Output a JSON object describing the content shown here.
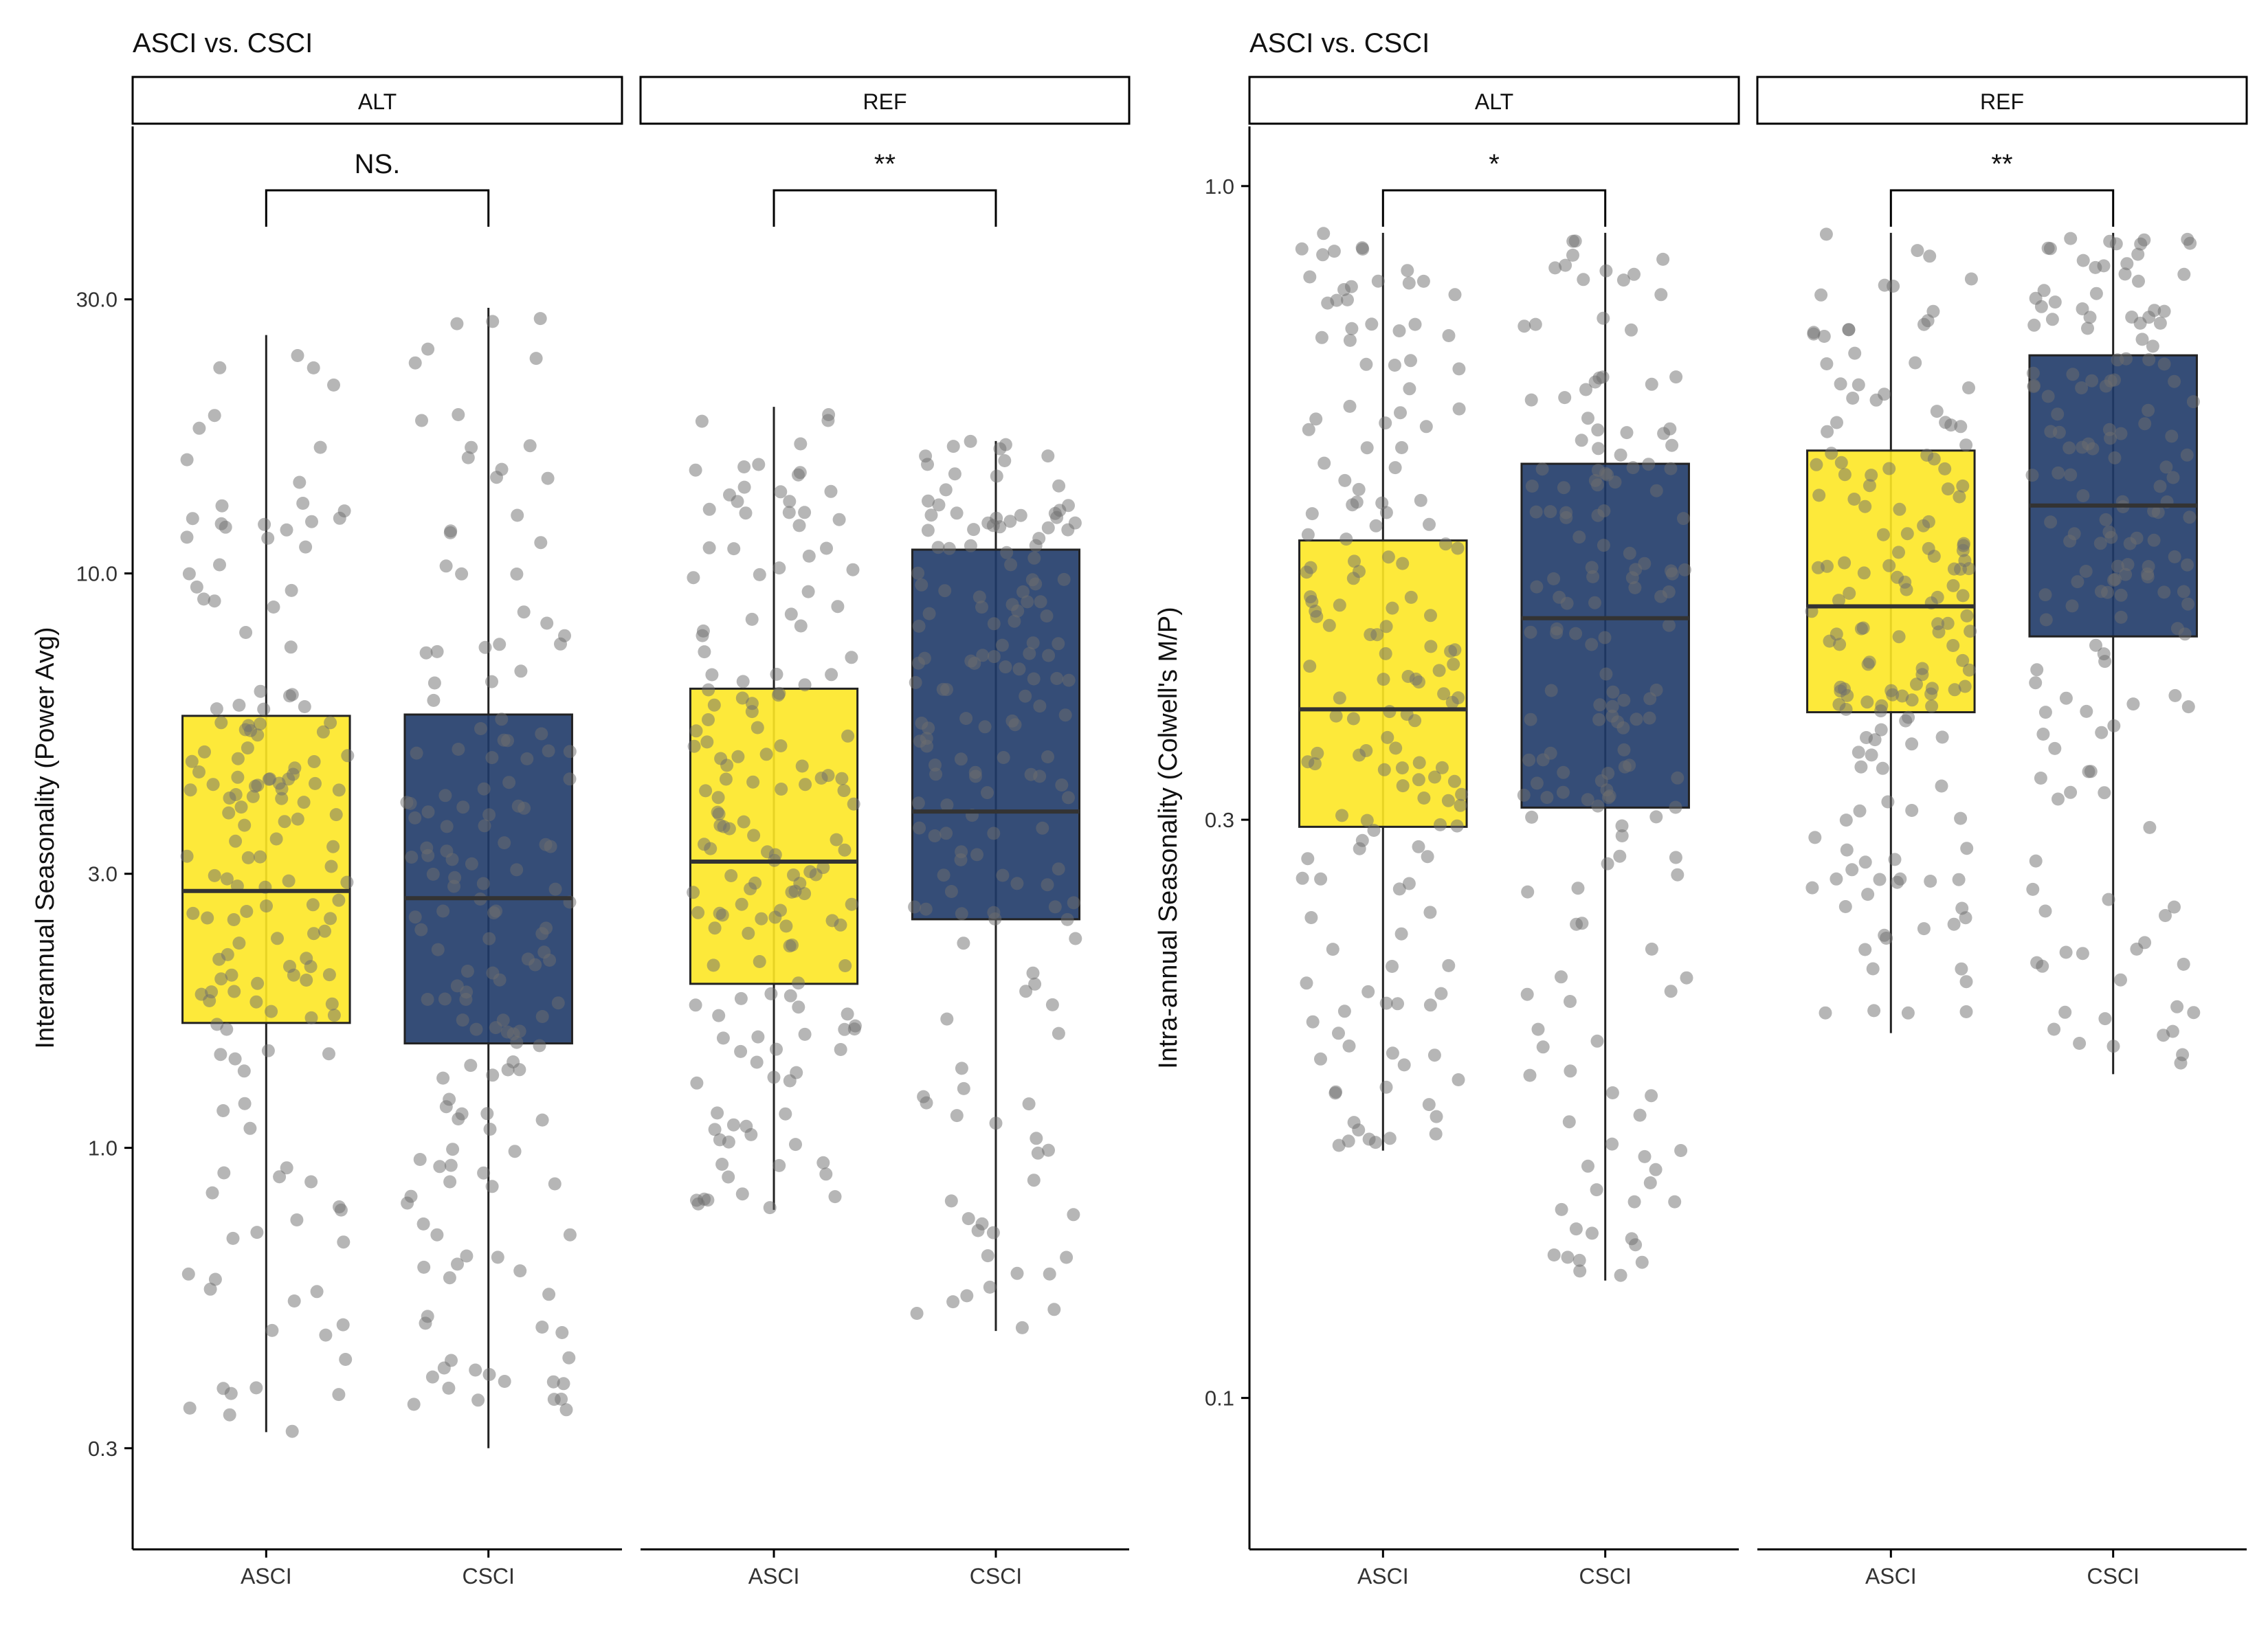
{
  "colors": {
    "asci_fill": "#FDE725",
    "csci_fill": "#1F3A68",
    "box_stroke": "#222222",
    "point": "#6E6E6E",
    "outlier": "#333333",
    "axis": "#000000"
  },
  "chart_data": [
    {
      "type": "boxplot",
      "title": "ASCI vs. CSCI",
      "ylabel": "Interannual Seasonality (Power Avg)",
      "yscale": "log",
      "ylim": [
        0.2,
        60
      ],
      "yticks": [
        {
          "value": 0.3,
          "label": "0.3"
        },
        {
          "value": 1.0,
          "label": "1.0"
        },
        {
          "value": 3.0,
          "label": "3.0"
        },
        {
          "value": 10.0,
          "label": "10.0"
        },
        {
          "value": 30.0,
          "label": "30.0"
        }
      ],
      "categories": [
        "ASCI",
        "CSCI"
      ],
      "facets": [
        {
          "label": "ALT",
          "significance": "NS.",
          "boxes": [
            {
              "category": "ASCI",
              "min": 0.32,
              "q1": 1.65,
              "median": 2.8,
              "q3": 5.65,
              "max": 26
            },
            {
              "category": "CSCI",
              "min": 0.3,
              "q1": 1.52,
              "median": 2.72,
              "q3": 5.68,
              "max": 29
            }
          ]
        },
        {
          "label": "REF",
          "significance": "**",
          "boxes": [
            {
              "category": "ASCI",
              "min": 0.78,
              "q1": 1.93,
              "median": 3.15,
              "q3": 6.3,
              "max": 19.5
            },
            {
              "category": "CSCI",
              "min": 0.48,
              "q1": 2.5,
              "median": 3.85,
              "q3": 11.0,
              "max": 17
            }
          ]
        }
      ]
    },
    {
      "type": "boxplot",
      "title": "ASCI vs. CSCI",
      "ylabel": "Intra-annual Seasonality (Colwell's M/P)",
      "yscale": "log",
      "ylim": [
        0.075,
        1.12
      ],
      "yticks": [
        {
          "value": 0.1,
          "label": "0.1"
        },
        {
          "value": 0.3,
          "label": "0.3"
        },
        {
          "value": 1.0,
          "label": "1.0"
        }
      ],
      "categories": [
        "ASCI",
        "CSCI"
      ],
      "facets": [
        {
          "label": "ALT",
          "significance": "*",
          "boxes": [
            {
              "category": "ASCI",
              "min": 0.16,
              "q1": 0.296,
              "median": 0.37,
              "q3": 0.51,
              "max": 0.915
            },
            {
              "category": "CSCI",
              "min": 0.125,
              "q1": 0.307,
              "median": 0.44,
              "q3": 0.59,
              "max": 0.915
            }
          ]
        },
        {
          "label": "REF",
          "significance": "**",
          "boxes": [
            {
              "category": "ASCI",
              "min": 0.2,
              "q1": 0.368,
              "median": 0.45,
              "q3": 0.605,
              "max": 0.915
            },
            {
              "category": "CSCI",
              "min": 0.185,
              "q1": 0.425,
              "median": 0.545,
              "q3": 0.725,
              "max": 0.915
            }
          ]
        }
      ]
    }
  ]
}
